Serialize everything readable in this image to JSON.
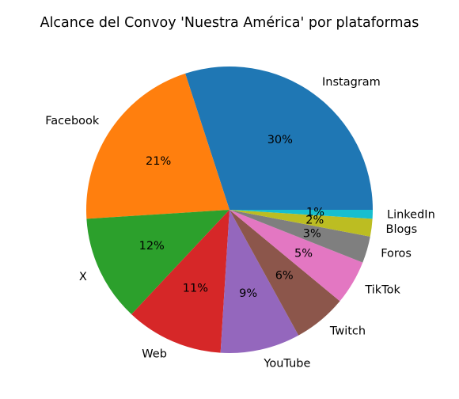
{
  "chart_data": {
    "type": "pie",
    "title": "Alcance del Convoy 'Nuestra América' por plataformas",
    "categories": [
      "Instagram",
      "Facebook",
      "X",
      "Web",
      "YouTube",
      "Twitch",
      "TikTok",
      "Foros",
      "Blogs",
      "LinkedIn"
    ],
    "values": [
      30,
      21,
      12,
      11,
      9,
      6,
      5,
      3,
      2,
      1
    ],
    "value_labels": [
      "30%",
      "21%",
      "12%",
      "11%",
      "9%",
      "6%",
      "5%",
      "3%",
      "2%",
      "1%"
    ],
    "colors": [
      "#1f77b4",
      "#ff7f0e",
      "#2ca02c",
      "#d62728",
      "#9467bd",
      "#8c564b",
      "#e377c2",
      "#7f7f7f",
      "#bcbd22",
      "#17becf"
    ],
    "start_angle_deg": 0,
    "direction": "counterclockwise",
    "legend": "none"
  }
}
